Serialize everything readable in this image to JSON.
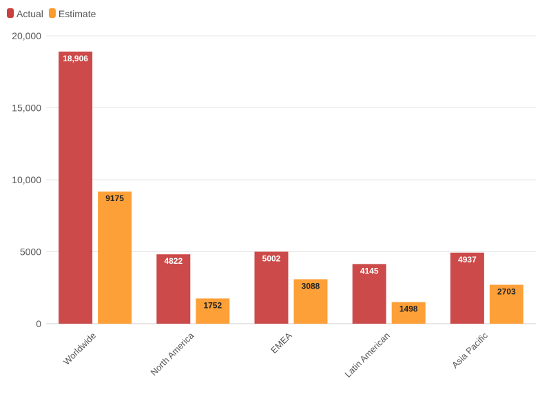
{
  "chart_data": {
    "type": "bar",
    "categories": [
      "Worldwide",
      "North America",
      "EMEA",
      "Latin American",
      "Asia Pacific"
    ],
    "series": [
      {
        "name": "Actual",
        "color": "#c9403f",
        "label_color": "#ffffff",
        "values": [
          18906,
          4822,
          5002,
          4145,
          4937
        ]
      },
      {
        "name": "Estimate",
        "color": "#fd9b2d",
        "label_color": "#222222",
        "values": [
          9175,
          1752,
          3088,
          1498,
          2703
        ]
      }
    ],
    "value_labels": [
      [
        "18,906",
        "4822",
        "5002",
        "4145",
        "4937"
      ],
      [
        "9175",
        "1752",
        "3088",
        "1498",
        "2703"
      ]
    ],
    "y_ticks": [
      0,
      5000,
      10000,
      15000,
      20000
    ],
    "y_tick_labels": [
      "0",
      "5000",
      "10,000",
      "15,000",
      "20,000"
    ],
    "ylim": [
      0,
      20000
    ],
    "grid": true,
    "legend_position": "top-left"
  }
}
